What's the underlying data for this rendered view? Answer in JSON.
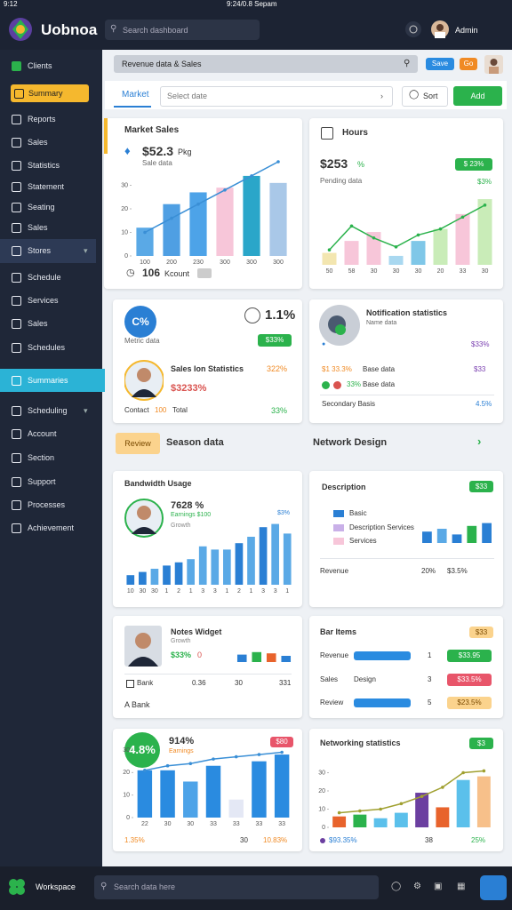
{
  "status_bar": {
    "time": "9:12",
    "title": "9:24/0.8 Sepam"
  },
  "header": {
    "app_name": "Uobnoa",
    "search": "Search dashboard",
    "user": "Admin"
  },
  "sidebar": {
    "items": [
      "Clients",
      "Summary",
      "Reports",
      "Sales",
      "Statistics",
      "Statement",
      "Seating",
      "Sales",
      "Stores",
      "Schedule",
      "Services",
      "Sales",
      "Schedules",
      "Summaries",
      "Scheduling",
      "Account",
      "Section",
      "Support",
      "Processes",
      "Achievement"
    ]
  },
  "toolbar": {
    "filter": "Revenue data & Sales",
    "save": "Save",
    "go": "Go"
  },
  "tabs": {
    "tab": "Market",
    "select": "Select date",
    "sort": "Sort",
    "add": "Add"
  },
  "cards": {
    "market": {
      "title": "Market Sales",
      "amount": "$52.3",
      "unit": "Pkg",
      "caption": "Sale data",
      "count": "106",
      "count_label": "Kcount"
    },
    "hours": {
      "title": "Hours",
      "amount": "$253",
      "delta": "%",
      "badge": "$ 23%",
      "caption": "Pending data",
      "tag": "$3%"
    },
    "metric": {
      "circle": "C%",
      "value": "1.1%",
      "caption": "Metric data",
      "badge": "$33%",
      "person": "Sales Ion Statistics",
      "person_tag": "322%",
      "person_value": "$3233%",
      "contact": "Contact",
      "contact_badge": "100",
      "contact_label": "Total",
      "growth": "33%"
    },
    "notify": {
      "title": "Notification statistics",
      "subtitle": "Name data",
      "top_value": "$33%",
      "row1_a": "$1 33.3%",
      "row1_b": "Base data",
      "row1_c": "$33",
      "row2_a": "33%",
      "row2_b": "Base data",
      "footer": "Secondary Basis",
      "footer_value": "4.5%"
    },
    "section": {
      "badge": "Review",
      "title": "Season data",
      "right_title": "Network Design"
    },
    "bandwidth": {
      "title": "Bandwidth Usage",
      "value": "7628 %",
      "earnings": "Earnings $100",
      "growth": "Growth",
      "tag": "$3%"
    },
    "description": {
      "title": "Description",
      "badge": "$33",
      "legend": [
        "Basic",
        "Description Services",
        "Services"
      ],
      "footer": "Revenue",
      "footer_a": "20%",
      "footer_b": "$3.5%"
    },
    "notes": {
      "title": "Notes Widget",
      "subtitle": "Growth",
      "value": "$33%",
      "value_b": "0",
      "row_label": "Bank",
      "row_a": "0.36",
      "row_b": "30",
      "row_c": "331",
      "footer": "A Bank"
    },
    "items": {
      "title": "Bar Items",
      "badge": "$33",
      "rows": [
        {
          "label": "Revenue",
          "mid": "",
          "num": "1",
          "badge": "$33.95"
        },
        {
          "label": "Sales",
          "mid": "Design",
          "num": "3",
          "badge": "$33.5%"
        },
        {
          "label": "Review",
          "mid": "",
          "num": "5",
          "badge": "$23.5%"
        }
      ]
    },
    "earnings": {
      "circle": "4.8%",
      "value": "914%",
      "caption": "Earnings",
      "badge": "$80",
      "foot_a": "1.35%",
      "foot_b": "30",
      "foot_c": "10.83%"
    },
    "network": {
      "title": "Networking statistics",
      "badge": "$3",
      "foot_a": "$93.35%",
      "foot_b": "38",
      "foot_c": "25%"
    }
  },
  "bottom_bar": {
    "label": "Workspace",
    "search": "Search data here"
  },
  "chart_data": [
    {
      "type": "combo",
      "ylim": [
        0,
        40
      ],
      "yticks": [
        0,
        10,
        20,
        30
      ],
      "categories": [
        "100",
        "200",
        "230",
        "300",
        "300",
        "300"
      ],
      "series": [
        {
          "type": "bar",
          "colors": [
            "#5aa9e6",
            "#4f9fe3",
            "#4da3e8",
            "#f7c6d9",
            "#2aa6c9",
            "#a9c8e8"
          ],
          "values": [
            12,
            22,
            27,
            29,
            34,
            31
          ]
        },
        {
          "type": "line",
          "color": "#3a8fd6",
          "values": [
            10,
            16,
            22,
            28,
            34,
            40
          ]
        }
      ]
    },
    {
      "type": "combo",
      "ylim": [
        0,
        25
      ],
      "categories": [
        "50",
        "58",
        "30",
        "30",
        "30",
        "20",
        "33",
        "30"
      ],
      "series": [
        {
          "type": "bar",
          "colors": [
            "#f3e6b0",
            "#f7c6d9",
            "#f7c6d9",
            "#a9d8f0",
            "#7fc7e8",
            "#c9ecb8",
            "#f7c6d9",
            "#c9ecb8"
          ],
          "values": [
            4,
            8,
            11,
            3,
            8,
            12,
            17,
            22
          ]
        },
        {
          "type": "line",
          "color": "#2bb24c",
          "values": [
            5,
            13,
            9,
            6,
            10,
            12,
            16,
            20
          ]
        }
      ]
    },
    {
      "type": "combo",
      "ylim": [
        0,
        10
      ],
      "categories": [
        "10",
        "30",
        "30",
        "1",
        "2",
        "1",
        "3",
        "3",
        "1",
        "2",
        "1",
        "3",
        "3",
        "1"
      ],
      "series": [
        {
          "type": "bar",
          "colors": [
            "#2a7fd4",
            "#2a7fd4",
            "#5aa9e6",
            "#2a7fd4",
            "#2a7fd4",
            "#5aa9e6",
            "#5aa9e6",
            "#5aa9e6",
            "#5aa9e6",
            "#2a7fd4",
            "#5aa9e6",
            "#2a7fd4",
            "#5aa9e6",
            "#5aa9e6"
          ],
          "values": [
            1.5,
            2,
            2.5,
            3,
            3.5,
            4,
            6,
            5.5,
            5.5,
            6.5,
            7.5,
            9,
            9.5,
            8
          ]
        }
      ]
    },
    {
      "type": "combo",
      "ylim": [
        0,
        10
      ],
      "series": [
        {
          "type": "bar",
          "colors": [
            "#2a7fd4",
            "#5aa9e6",
            "#2a7fd4",
            "#2bb24c",
            "#2a7fd4"
          ],
          "values": [
            4,
            5,
            3,
            6,
            7
          ]
        }
      ]
    },
    {
      "type": "combo",
      "ylim": [
        0,
        30
      ],
      "yticks": [
        0,
        10,
        20,
        30
      ],
      "categories": [
        "22",
        "30",
        "30",
        "33",
        "33",
        "33",
        "33"
      ],
      "series": [
        {
          "type": "bar",
          "colors": [
            "#2a8be0",
            "#2a8be0",
            "#4da3e8",
            "#2a8be0",
            "#e4e8f5",
            "#2a8be0",
            "#2a8be0"
          ],
          "values": [
            21,
            21,
            16,
            23,
            8,
            25,
            28
          ]
        },
        {
          "type": "line",
          "color": "#3a8fd6",
          "values": [
            21,
            23,
            24,
            26,
            27,
            28,
            29
          ]
        }
      ]
    },
    {
      "type": "combo",
      "ylim": [
        0,
        40
      ],
      "yticks": [
        0,
        10,
        20,
        30
      ],
      "series": [
        {
          "type": "bar",
          "colors": [
            "#e8632c",
            "#2bb24c",
            "#5bc0eb",
            "#5bc0eb",
            "#6b3fa0",
            "#e8632c",
            "#5bc0eb",
            "#f7c08a"
          ],
          "values": [
            6,
            7,
            5,
            8,
            19,
            11,
            26,
            28
          ]
        },
        {
          "type": "line",
          "color": "#a0a030",
          "values": [
            8,
            9,
            10,
            13,
            17,
            22,
            30,
            31
          ]
        }
      ]
    },
    {
      "type": "combo",
      "ylim": [
        0,
        10
      ],
      "series": [
        {
          "type": "bar",
          "colors": [
            "#2a7fd4",
            "#2bb24c",
            "#e8632c",
            "#2a7fd4"
          ],
          "values": [
            6,
            8,
            7,
            5
          ]
        }
      ]
    }
  ]
}
